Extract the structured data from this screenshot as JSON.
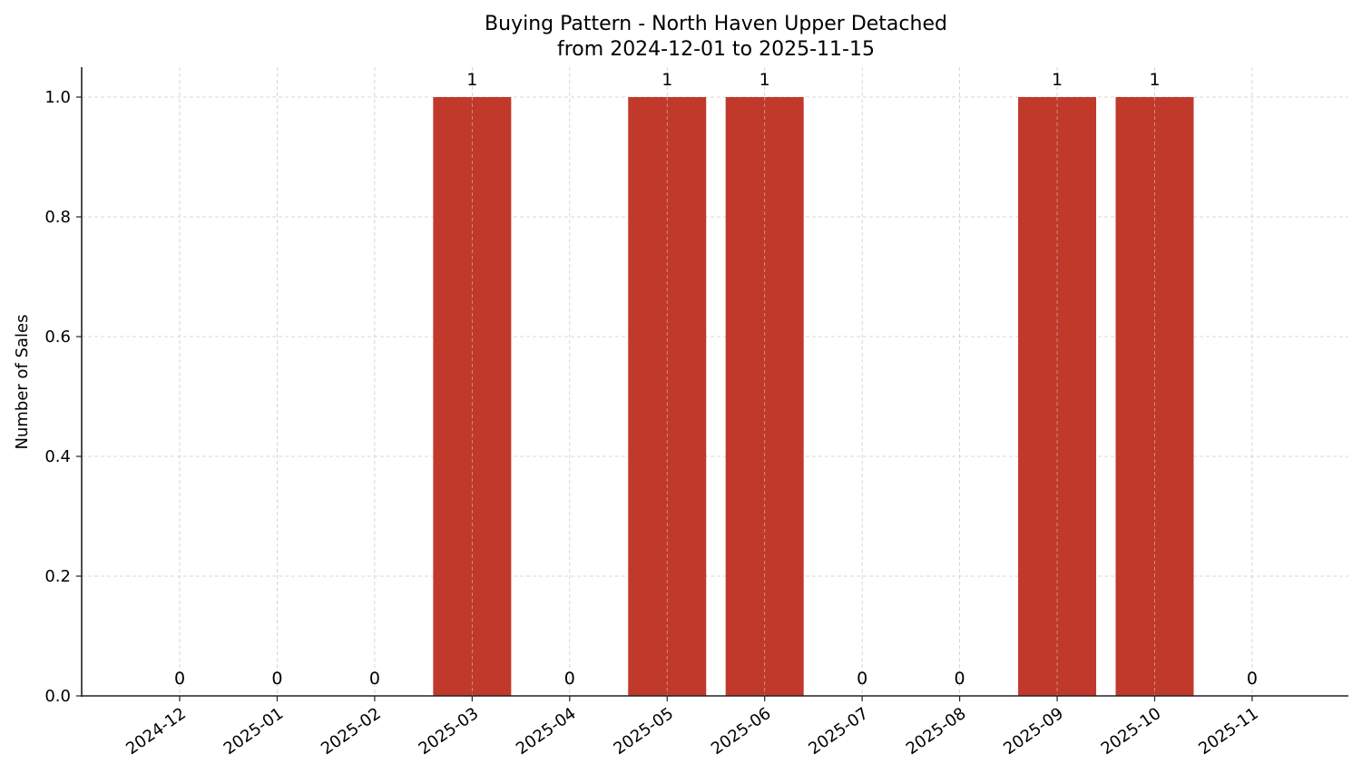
{
  "chart_data": {
    "type": "bar",
    "title": "Buying Pattern - North Haven Upper Detached",
    "subtitle": "from 2024-12-01 to 2025-11-15",
    "xlabel": "",
    "ylabel": "Number of Sales",
    "categories": [
      "2024-12",
      "2025-01",
      "2025-02",
      "2025-03",
      "2025-04",
      "2025-05",
      "2025-06",
      "2025-07",
      "2025-08",
      "2025-09",
      "2025-10",
      "2025-11"
    ],
    "values": [
      0,
      0,
      0,
      1,
      0,
      1,
      1,
      0,
      0,
      1,
      1,
      0
    ],
    "ylim": [
      0,
      1.05
    ],
    "yticks": [
      "0.0",
      "0.2",
      "0.4",
      "0.6",
      "0.8",
      "1.0"
    ],
    "grid": true,
    "legend": null,
    "bar_color": "#c0392b",
    "data_labels": true
  }
}
